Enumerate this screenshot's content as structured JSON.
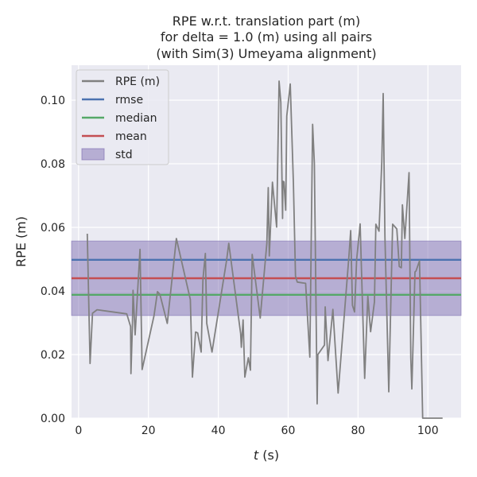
{
  "chart_data": {
    "type": "line",
    "title_lines": [
      "RPE w.r.t. translation part (m)",
      "for delta = 1.0 (m) using all pairs",
      "(with Sim(3) Umeyama alignment)"
    ],
    "xlabel_italic": "t",
    "xlabel_rest": " (s)",
    "ylabel": "RPE (m)",
    "xlim": [
      -2,
      109.5
    ],
    "ylim": [
      0,
      0.111
    ],
    "xticks": [
      0,
      20,
      40,
      60,
      80,
      100
    ],
    "xtick_labels": [
      "0",
      "20",
      "40",
      "60",
      "80",
      "100"
    ],
    "yticks": [
      0.0,
      0.02,
      0.04,
      0.06,
      0.08,
      0.1
    ],
    "ytick_labels": [
      "0.00",
      "0.02",
      "0.04",
      "0.06",
      "0.08",
      "0.10"
    ],
    "grid": true,
    "legend_position": "top-left",
    "legend": [
      {
        "label": "RPE (m)",
        "color": "#808080",
        "kind": "line"
      },
      {
        "label": "rmse",
        "color": "#4c72b0",
        "kind": "line"
      },
      {
        "label": "median",
        "color": "#55a868",
        "kind": "line"
      },
      {
        "label": "mean",
        "color": "#c44e52",
        "kind": "line"
      },
      {
        "label": "std",
        "color": "#8172b3",
        "kind": "patch"
      }
    ],
    "stats": {
      "rmse": 0.0498,
      "median": 0.0388,
      "mean": 0.044,
      "std_low": 0.0323,
      "std_high": 0.0557
    },
    "colors": {
      "rpe": "#808080",
      "rmse": "#4c72b0",
      "median": "#55a868",
      "mean": "#c44e52",
      "std": "#8172b3",
      "plot_bg": "#eaeaf2",
      "grid": "#ffffff"
    },
    "series": [
      {
        "name": "RPE (m)",
        "x": [
          2.5,
          3.3,
          4.0,
          5.3,
          13.8,
          14.9,
          15.0,
          15.4,
          15.6,
          16.2,
          16.6,
          17.6,
          18.2,
          21.6,
          22.6,
          23.3,
          25.4,
          28.0,
          32.0,
          32.6,
          33.5,
          34.1,
          35.1,
          35.6,
          36.3,
          36.7,
          38.2,
          42.4,
          43.0,
          46.4,
          46.6,
          47.1,
          47.6,
          48.6,
          49.2,
          49.7,
          52.0,
          53.9,
          54.3,
          54.6,
          55.5,
          56.7,
          57.4,
          57.9,
          58.4,
          58.5,
          58.8,
          59.3,
          59.6,
          60.6,
          61.5,
          62.1,
          62.6,
          65.0,
          66.2,
          67.0,
          67.5,
          68.3,
          68.5,
          70.4,
          70.6,
          71.4,
          72.8,
          74.3,
          77.4,
          77.9,
          78.4,
          79.0,
          79.6,
          80.6,
          81.9,
          82.8,
          83.6,
          84.7,
          85.1,
          86.0,
          86.8,
          87.2,
          87.7,
          88.8,
          89.9,
          91.1,
          91.8,
          92.4,
          92.7,
          93.4,
          94.6,
          95.1,
          95.4,
          95.9,
          96.3,
          96.6,
          97.6,
          98.5,
          100.3,
          101.0,
          101.5,
          102.4,
          104.2
        ],
        "y": [
          0.058,
          0.0172,
          0.033,
          0.0341,
          0.0328,
          0.0288,
          0.014,
          0.0282,
          0.0402,
          0.0262,
          0.034,
          0.0531,
          0.0153,
          0.0322,
          0.0398,
          0.0389,
          0.0298,
          0.0565,
          0.0373,
          0.0129,
          0.0271,
          0.0268,
          0.0208,
          0.0435,
          0.0518,
          0.0298,
          0.0208,
          0.0498,
          0.055,
          0.0266,
          0.0223,
          0.0309,
          0.0129,
          0.019,
          0.0151,
          0.0515,
          0.0315,
          0.055,
          0.0725,
          0.051,
          0.0742,
          0.0601,
          0.106,
          0.0993,
          0.0628,
          0.0745,
          0.0743,
          0.0654,
          0.095,
          0.1051,
          0.0739,
          0.0447,
          0.0428,
          0.0424,
          0.0192,
          0.0924,
          0.0801,
          0.0045,
          0.02,
          0.023,
          0.035,
          0.0181,
          0.0342,
          0.0079,
          0.051,
          0.059,
          0.0355,
          0.0334,
          0.0498,
          0.0611,
          0.0125,
          0.0384,
          0.0272,
          0.0366,
          0.061,
          0.0588,
          0.0805,
          0.1021,
          0.057,
          0.0083,
          0.061,
          0.0595,
          0.0477,
          0.0473,
          0.0671,
          0.0565,
          0.0772,
          0.019,
          0.0092,
          0.0295,
          0.046,
          0.0463,
          0.0495,
          0.0,
          0.0,
          0.0,
          0.0,
          0.0,
          0.0
        ]
      }
    ]
  }
}
